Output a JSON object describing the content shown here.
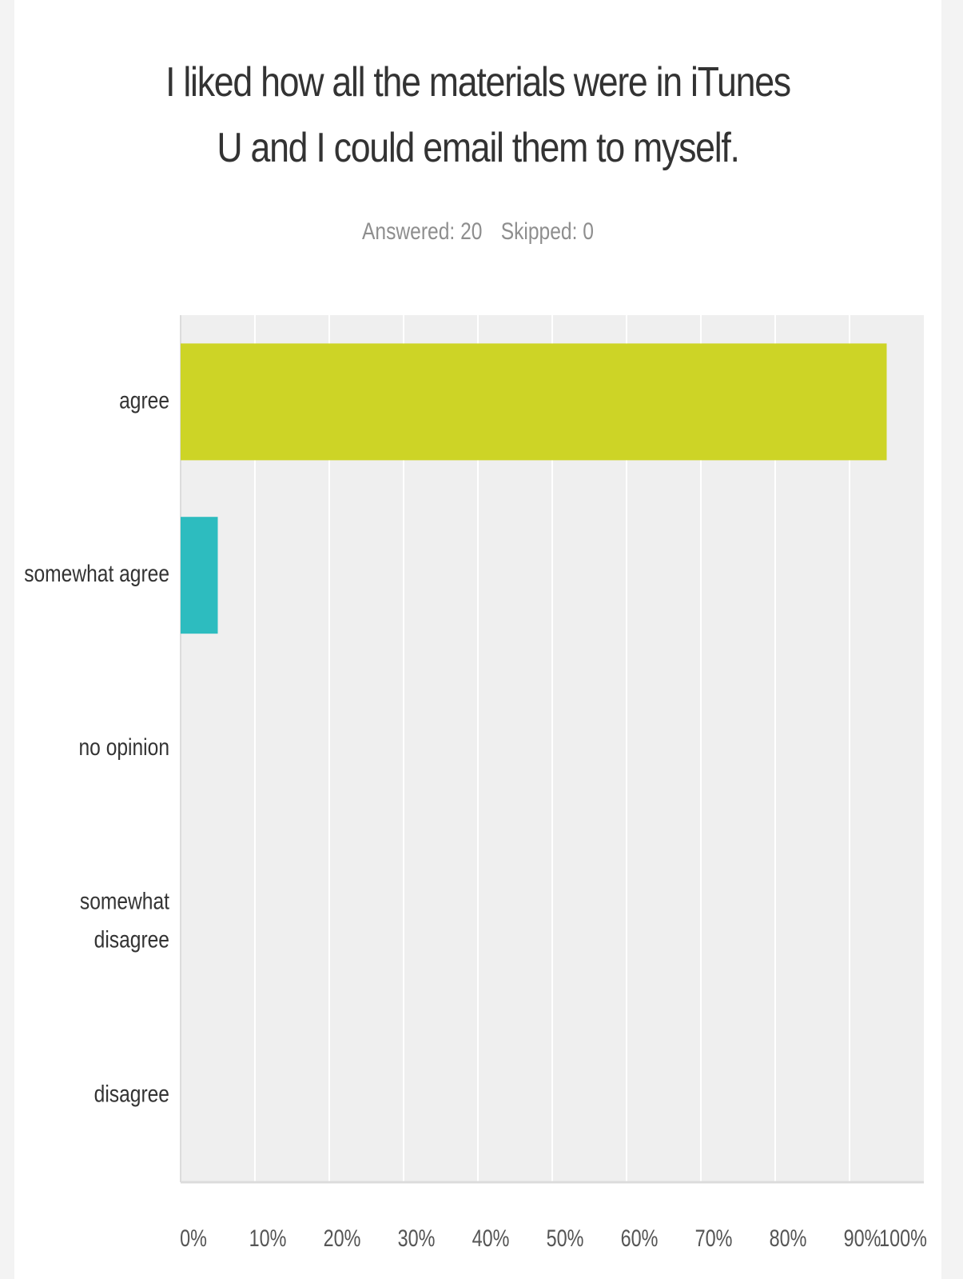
{
  "chart_data": {
    "type": "bar",
    "orientation": "horizontal",
    "title_lines": [
      "I liked how all the materials were in iTunes",
      "U and I could email them to myself."
    ],
    "answered_label": "Answered: 20",
    "skipped_label": "Skipped: 0",
    "categories": [
      {
        "lines": [
          "agree"
        ],
        "value": 95,
        "color": "#cdd426"
      },
      {
        "lines": [
          "somewhat agree"
        ],
        "value": 5,
        "color": "#2dbcbf"
      },
      {
        "lines": [
          "no opinion"
        ],
        "value": 0,
        "color": "#cccccc"
      },
      {
        "lines": [
          "somewhat",
          "disagree"
        ],
        "value": 0,
        "color": "#cccccc"
      },
      {
        "lines": [
          "disagree"
        ],
        "value": 0,
        "color": "#cccccc"
      }
    ],
    "xlim": [
      0,
      100
    ],
    "x_ticks": [
      "0%",
      "10%",
      "20%",
      "30%",
      "40%",
      "50%",
      "60%",
      "70%",
      "80%",
      "90%",
      "100%"
    ],
    "grid": true,
    "plot_background": "#efefef",
    "grid_color": "#ffffff",
    "label_color": "#333333",
    "tick_color": "#555555"
  }
}
